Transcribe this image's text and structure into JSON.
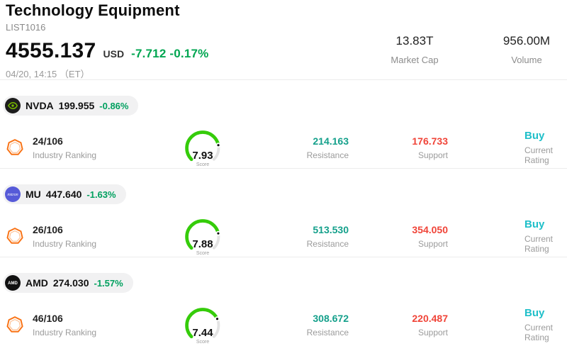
{
  "header": {
    "title": "Technology Equipment",
    "subtitle": "LIST1016",
    "price": "4555.137",
    "currency": "USD",
    "change": "-7.712 -0.17%",
    "datetime": "04/20, 14:15 （ET）",
    "market_cap": {
      "value": "13.83T",
      "label": "Market Cap"
    },
    "volume": {
      "value": "956.00M",
      "label": "Volume"
    }
  },
  "labels": {
    "ranking": "Industry Ranking",
    "score": "Score",
    "resistance": "Resistance",
    "support": "Support",
    "rating": "Current Rating"
  },
  "colors": {
    "change_green": "#00a651",
    "resistance_teal": "#14a08b",
    "support_red": "#f04438",
    "rating_cyan": "#1fbfc9",
    "gauge_green": "#35cc0a",
    "badge_orange": "#f97316",
    "nvidia_green": "#76b900",
    "micron_purple": "#565ad8",
    "amd_black": "#111111"
  },
  "rows": [
    {
      "ticker": "NVDA",
      "price": "199.955",
      "change": "-0.86%",
      "ranking": "24/106",
      "score": "7.93",
      "resistance": "214.163",
      "support": "176.733",
      "rating": "Buy"
    },
    {
      "ticker": "MU",
      "price": "447.640",
      "change": "-1.63%",
      "logo_text": "micron",
      "ranking": "26/106",
      "score": "7.88",
      "resistance": "513.530",
      "support": "354.050",
      "rating": "Buy"
    },
    {
      "ticker": "AMD",
      "price": "274.030",
      "change": "-1.57%",
      "logo_text": "AMD",
      "ranking": "46/106",
      "score": "7.44",
      "resistance": "308.672",
      "support": "220.487",
      "rating": "Buy"
    }
  ]
}
